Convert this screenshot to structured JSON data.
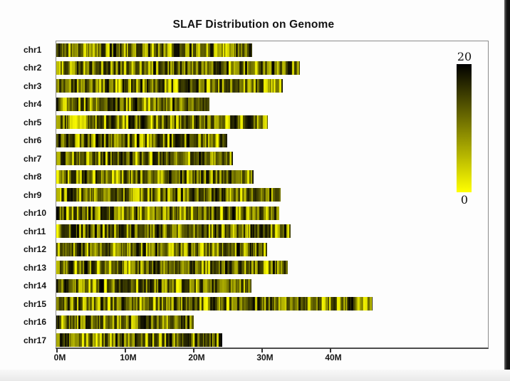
{
  "chart_data": {
    "type": "heatmap",
    "title": "SLAF Distribution on Genome",
    "xlabel": "",
    "ylabel": "",
    "x_ticks": {
      "labels": [
        "0M",
        "10M",
        "20M",
        "30M",
        "40M"
      ],
      "values": [
        0,
        10,
        20,
        30,
        40
      ]
    },
    "xlim": [
      0,
      63
    ],
    "grid": false,
    "legend_position": "right",
    "categories": [
      "chr1",
      "chr2",
      "chr3",
      "chr4",
      "chr5",
      "chr6",
      "chr7",
      "chr8",
      "chr9",
      "chr10",
      "chr11",
      "chr12",
      "chr13",
      "chr14",
      "chr15",
      "chr16",
      "chr17"
    ],
    "chromosome_lengths_M": [
      28.6,
      35.6,
      33.1,
      22.4,
      30.9,
      25.0,
      25.8,
      28.9,
      32.8,
      32.6,
      34.3,
      30.8,
      33.9,
      28.5,
      46.3,
      20.1,
      24.3
    ],
    "colorbar": {
      "max_label": "20",
      "min_label": "0",
      "max_value": 20,
      "min_value": 0,
      "high_color": "#000000",
      "mid_color": "#808000",
      "low_color": "#ffff00"
    }
  }
}
